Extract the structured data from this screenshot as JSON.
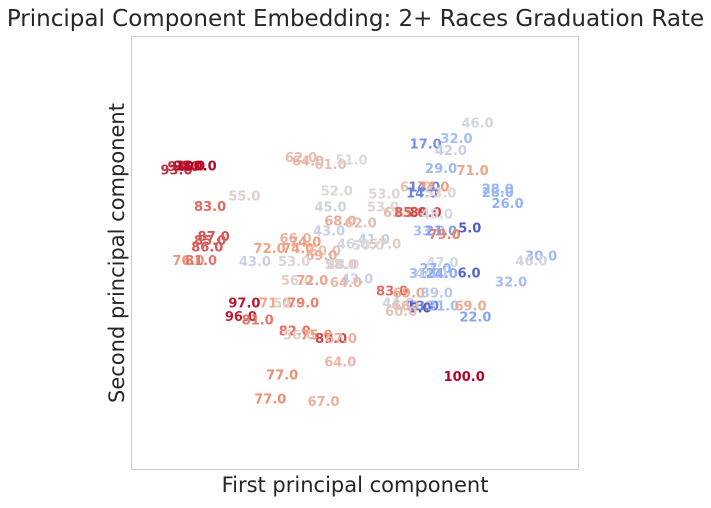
{
  "chart_data": {
    "type": "scatter",
    "title": "Principal Component Embedding: 2+ Races Graduation Rate",
    "xlabel": "First principal component",
    "ylabel": "Second principal component",
    "grid": false,
    "ticks": false,
    "color_scale": {
      "name": "coolwarm",
      "min": 0,
      "max": 100
    },
    "points": [
      {
        "x": -2.55,
        "y": 1.9,
        "label": "93.0",
        "value": 93
      },
      {
        "x": -2.45,
        "y": 1.95,
        "label": "94.0",
        "value": 94
      },
      {
        "x": -2.37,
        "y": 1.96,
        "label": "98.0",
        "value": 98
      },
      {
        "x": -2.27,
        "y": 1.96,
        "label": "100.0",
        "value": 100
      },
      {
        "x": -0.77,
        "y": 2.08,
        "label": "62.0",
        "value": 62
      },
      {
        "x": -0.67,
        "y": 2.03,
        "label": "64.0",
        "value": 64
      },
      {
        "x": -0.35,
        "y": 1.98,
        "label": "61.0",
        "value": 61
      },
      {
        "x": -0.05,
        "y": 2.04,
        "label": "51.0",
        "value": 51
      },
      {
        "x": 1.75,
        "y": 2.57,
        "label": "46.0",
        "value": 46
      },
      {
        "x": 1.45,
        "y": 2.35,
        "label": "32.0",
        "value": 32
      },
      {
        "x": 1.01,
        "y": 2.27,
        "label": "17.0",
        "value": 17
      },
      {
        "x": 1.37,
        "y": 2.18,
        "label": "42.0",
        "value": 42
      },
      {
        "x": 1.23,
        "y": 1.92,
        "label": "29.0",
        "value": 29
      },
      {
        "x": 1.68,
        "y": 1.89,
        "label": "71.0",
        "value": 71
      },
      {
        "x": -2.07,
        "y": 1.38,
        "label": "83.0",
        "value": 83
      },
      {
        "x": -1.58,
        "y": 1.53,
        "label": "55.0",
        "value": 55
      },
      {
        "x": -0.26,
        "y": 1.6,
        "label": "52.0",
        "value": 52
      },
      {
        "x": -0.35,
        "y": 1.37,
        "label": "45.0",
        "value": 45
      },
      {
        "x": 0.42,
        "y": 1.56,
        "label": "53.0",
        "value": 53
      },
      {
        "x": 0.87,
        "y": 1.66,
        "label": "61.0",
        "value": 61
      },
      {
        "x": 0.99,
        "y": 1.66,
        "label": "14.0",
        "value": 14
      },
      {
        "x": 1.12,
        "y": 1.66,
        "label": "74.0",
        "value": 74
      },
      {
        "x": 0.96,
        "y": 1.57,
        "label": "14.0",
        "value": 14
      },
      {
        "x": 1.22,
        "y": 1.57,
        "label": "53.0",
        "value": 53
      },
      {
        "x": 2.04,
        "y": 1.63,
        "label": "28.0",
        "value": 28
      },
      {
        "x": 2.04,
        "y": 1.58,
        "label": "28.0",
        "value": 28
      },
      {
        "x": 2.18,
        "y": 1.42,
        "label": "26.0",
        "value": 26
      },
      {
        "x": 0.4,
        "y": 1.37,
        "label": "53.0",
        "value": 53
      },
      {
        "x": 0.63,
        "y": 1.29,
        "label": "63.0",
        "value": 63
      },
      {
        "x": 0.79,
        "y": 1.29,
        "label": "85.0",
        "value": 85
      },
      {
        "x": 1.01,
        "y": 1.29,
        "label": "89.0",
        "value": 89
      },
      {
        "x": 1.17,
        "y": 1.27,
        "label": "48.0",
        "value": 48
      },
      {
        "x": -0.21,
        "y": 1.17,
        "label": "68.0",
        "value": 68
      },
      {
        "x": 0.08,
        "y": 1.14,
        "label": "62.0",
        "value": 62
      },
      {
        "x": -0.37,
        "y": 1.03,
        "label": "43.0",
        "value": 43
      },
      {
        "x": 1.06,
        "y": 1.03,
        "label": "33.0",
        "value": 33
      },
      {
        "x": 1.23,
        "y": 1.03,
        "label": "21.0",
        "value": 21
      },
      {
        "x": 1.28,
        "y": 0.98,
        "label": "79.0",
        "value": 79
      },
      {
        "x": 1.64,
        "y": 1.07,
        "label": "5.0",
        "value": 5
      },
      {
        "x": -2.02,
        "y": 0.95,
        "label": "87.0",
        "value": 87
      },
      {
        "x": -2.07,
        "y": 0.89,
        "label": "85.0",
        "value": 85
      },
      {
        "x": -2.11,
        "y": 0.8,
        "label": "86.0",
        "value": 86
      },
      {
        "x": -0.85,
        "y": 0.92,
        "label": "66.0",
        "value": 66
      },
      {
        "x": -0.71,
        "y": 0.87,
        "label": "74.0",
        "value": 74
      },
      {
        "x": -1.22,
        "y": 0.78,
        "label": "72.0",
        "value": 72
      },
      {
        "x": -0.81,
        "y": 0.78,
        "label": "74.0",
        "value": 74
      },
      {
        "x": 0.27,
        "y": 0.91,
        "label": "41.0",
        "value": 41
      },
      {
        "x": -0.03,
        "y": 0.84,
        "label": "46.0",
        "value": 46
      },
      {
        "x": 0.19,
        "y": 0.82,
        "label": "50.0",
        "value": 50
      },
      {
        "x": 0.43,
        "y": 0.84,
        "label": "57.0",
        "value": 57
      },
      {
        "x": -0.43,
        "y": 0.74,
        "label": "60.0",
        "value": 60
      },
      {
        "x": -0.48,
        "y": 0.68,
        "label": "69.0",
        "value": 69
      },
      {
        "x": -0.87,
        "y": 0.59,
        "label": "53.0",
        "value": 53
      },
      {
        "x": -2.38,
        "y": 0.61,
        "label": "76.0",
        "value": 76
      },
      {
        "x": -2.2,
        "y": 0.61,
        "label": "81.0",
        "value": 81
      },
      {
        "x": -1.43,
        "y": 0.59,
        "label": "43.0",
        "value": 43
      },
      {
        "x": -0.2,
        "y": 0.55,
        "label": "58.0",
        "value": 58
      },
      {
        "x": -0.17,
        "y": 0.55,
        "label": "48.0",
        "value": 48
      },
      {
        "x": 1.25,
        "y": 0.58,
        "label": "47.0",
        "value": 47
      },
      {
        "x": 2.66,
        "y": 0.67,
        "label": "30.0",
        "value": 30
      },
      {
        "x": 2.52,
        "y": 0.6,
        "label": "46.0",
        "value": 46
      },
      {
        "x": 1.15,
        "y": 0.49,
        "label": "27.0",
        "value": 27
      },
      {
        "x": 1.0,
        "y": 0.42,
        "label": "31.0",
        "value": 31
      },
      {
        "x": 1.09,
        "y": 0.42,
        "label": "44.0",
        "value": 44
      },
      {
        "x": 1.24,
        "y": 0.42,
        "label": "24.0",
        "value": 24
      },
      {
        "x": 1.63,
        "y": 0.43,
        "label": "6.0",
        "value": 6
      },
      {
        "x": 2.23,
        "y": 0.3,
        "label": "32.0",
        "value": 32
      },
      {
        "x": -0.83,
        "y": 0.32,
        "label": "56.0",
        "value": 56
      },
      {
        "x": -0.61,
        "y": 0.32,
        "label": "72.0",
        "value": 72
      },
      {
        "x": 0.03,
        "y": 0.34,
        "label": "43.0",
        "value": 43
      },
      {
        "x": -0.13,
        "y": 0.29,
        "label": "64.0",
        "value": 64
      },
      {
        "x": 0.53,
        "y": 0.17,
        "label": "83.0",
        "value": 83
      },
      {
        "x": 0.77,
        "y": 0.14,
        "label": "69.0",
        "value": 69
      },
      {
        "x": 1.17,
        "y": 0.14,
        "label": "39.0",
        "value": 39
      },
      {
        "x": -1.58,
        "y": 0.0,
        "label": "97.0",
        "value": 97
      },
      {
        "x": -1.14,
        "y": 0.0,
        "label": "71.0",
        "value": 71
      },
      {
        "x": -0.94,
        "y": 0.0,
        "label": "54.0",
        "value": 54
      },
      {
        "x": -0.74,
        "y": 0.0,
        "label": "79.0",
        "value": 79
      },
      {
        "x": 0.62,
        "y": 0.0,
        "label": "44.0",
        "value": 44
      },
      {
        "x": 0.76,
        "y": -0.04,
        "label": "60.0",
        "value": 60
      },
      {
        "x": 0.89,
        "y": -0.04,
        "label": "62.0",
        "value": 62
      },
      {
        "x": 0.97,
        "y": -0.04,
        "label": "13.0",
        "value": 13
      },
      {
        "x": 0.93,
        "y": -0.07,
        "label": "5.0",
        "value": 5
      },
      {
        "x": 0.66,
        "y": -0.12,
        "label": "60.0",
        "value": 60
      },
      {
        "x": 1.26,
        "y": -0.04,
        "label": "31.0",
        "value": 31
      },
      {
        "x": 1.65,
        "y": -0.04,
        "label": "69.0",
        "value": 69
      },
      {
        "x": 1.72,
        "y": -0.2,
        "label": "22.0",
        "value": 22
      },
      {
        "x": -1.63,
        "y": -0.19,
        "label": "96.0",
        "value": 96
      },
      {
        "x": -1.39,
        "y": -0.24,
        "label": "81.0",
        "value": 81
      },
      {
        "x": -0.86,
        "y": -0.4,
        "label": "82.0",
        "value": 82
      },
      {
        "x": -0.8,
        "y": -0.46,
        "label": "56.0",
        "value": 56
      },
      {
        "x": -0.55,
        "y": -0.46,
        "label": "75.0",
        "value": 75
      },
      {
        "x": -0.34,
        "y": -0.51,
        "label": "89.0",
        "value": 89
      },
      {
        "x": -0.2,
        "y": -0.51,
        "label": "67.0",
        "value": 67
      },
      {
        "x": -0.21,
        "y": -0.84,
        "label": "64.0",
        "value": 64
      },
      {
        "x": -1.04,
        "y": -1.03,
        "label": "77.0",
        "value": 77
      },
      {
        "x": 1.56,
        "y": -1.05,
        "label": "100.0",
        "value": 100
      },
      {
        "x": -1.21,
        "y": -1.37,
        "label": "77.0",
        "value": 77
      },
      {
        "x": -0.45,
        "y": -1.41,
        "label": "67.0",
        "value": 67
      }
    ]
  }
}
